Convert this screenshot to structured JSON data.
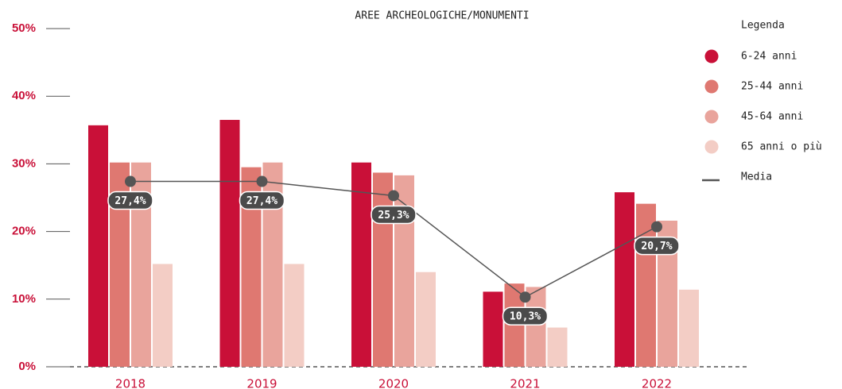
{
  "chart_data": {
    "type": "bar",
    "title": "AREE ARCHEOLOGICHE/MONUMENTI",
    "legend_title": "Legenda",
    "categories": [
      "2018",
      "2019",
      "2020",
      "2021",
      "2022"
    ],
    "series": [
      {
        "name": "6-24 anni",
        "color": "#c91038",
        "values": [
          35.7,
          36.5,
          30.2,
          11.1,
          25.8
        ]
      },
      {
        "name": "25-44 anni",
        "color": "#df7871",
        "values": [
          30.2,
          29.5,
          28.7,
          12.3,
          24.1
        ]
      },
      {
        "name": "45-64 anni",
        "color": "#e9a49c",
        "values": [
          30.2,
          30.2,
          28.3,
          11.8,
          21.6
        ]
      },
      {
        "name": "65 anni o più",
        "color": "#f3cdc5",
        "values": [
          15.2,
          15.2,
          14.0,
          5.8,
          11.4
        ]
      }
    ],
    "average": {
      "name": "Media",
      "color": "#555555",
      "values": [
        27.4,
        27.4,
        25.3,
        10.3,
        20.7
      ],
      "value_labels": [
        "27,4%",
        "27,4%",
        "25,3%",
        "10,3%",
        "20,7%"
      ]
    },
    "ylim": [
      0,
      50
    ],
    "yticks": [
      {
        "value": 0,
        "label": "0%"
      },
      {
        "value": 10,
        "label": "10%"
      },
      {
        "value": 20,
        "label": "20%"
      },
      {
        "value": 30,
        "label": "30%"
      },
      {
        "value": 40,
        "label": "40%"
      },
      {
        "value": 50,
        "label": "50%"
      }
    ]
  }
}
